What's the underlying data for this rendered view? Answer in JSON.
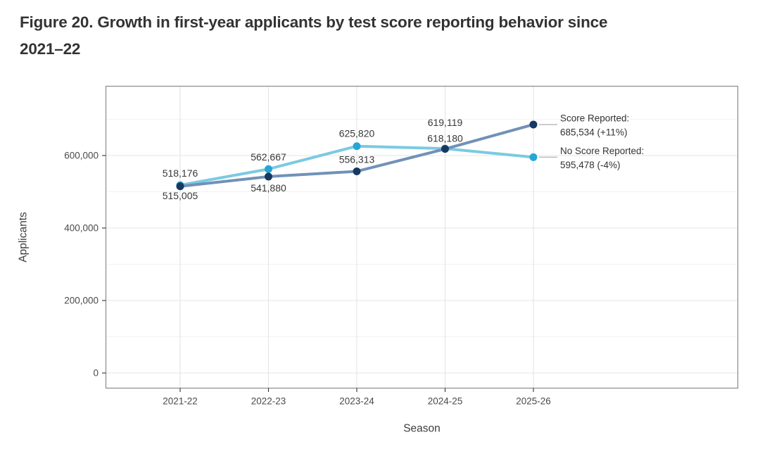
{
  "figure": {
    "title": "Figure 20. Growth in first-year applicants by test score reporting behavior since 2021–22",
    "title_line1": "Figure 20. Growth in first-year applicants by test score reporting behavior since",
    "title_line2": "2021–22"
  },
  "chart_data": {
    "type": "line",
    "title": "Figure 20. Growth in first-year applicants by test score reporting behavior since 2021–22",
    "xlabel": "Season",
    "ylabel": "Applicants",
    "categories": [
      "2021-22",
      "2022-23",
      "2023-24",
      "2024-25",
      "2025-26"
    ],
    "grid": true,
    "legend_position": "right-end-annotations",
    "y_axis": {
      "tick_values": [
        0,
        200000,
        400000,
        600000
      ],
      "tick_labels": [
        "0",
        "200,000",
        "400,000",
        "600,000"
      ],
      "minor_tick_values": [
        100000,
        300000,
        500000,
        700000
      ],
      "ylim": [
        0,
        790000
      ]
    },
    "series": [
      {
        "name": "Score Reported",
        "line_color": "#7191b7",
        "marker_color": "#17395f",
        "values": [
          515005,
          541880,
          556313,
          618180,
          685534
        ],
        "point_labels": [
          "515,005",
          "541,880",
          "556,313",
          "618,180"
        ],
        "annotation_line1": "Score Reported:",
        "annotation_line2": "685,534 (+11%)"
      },
      {
        "name": "No Score Reported",
        "line_color": "#7bcae2",
        "marker_color": "#25a7d5",
        "values": [
          518176,
          562667,
          625820,
          619119,
          595478
        ],
        "point_labels": [
          "518,176",
          "562,667",
          "625,820",
          "619,119"
        ],
        "annotation_line1": "No Score Reported:",
        "annotation_line2": "595,478 (-4%)"
      }
    ],
    "palette": {
      "title_text": "#333333",
      "axis_text": "#4a4a4a",
      "axis_title_text": "#3d3d3d",
      "data_label_text": "#383838",
      "annotation_text": "#333333",
      "grid_major": "#e4e4e4",
      "grid_minor": "#f2f2f2",
      "panel_border": "#8a8a8a",
      "tick_mark": "#333333",
      "leader_line": "#bbbbbb",
      "background": "#ffffff"
    }
  }
}
